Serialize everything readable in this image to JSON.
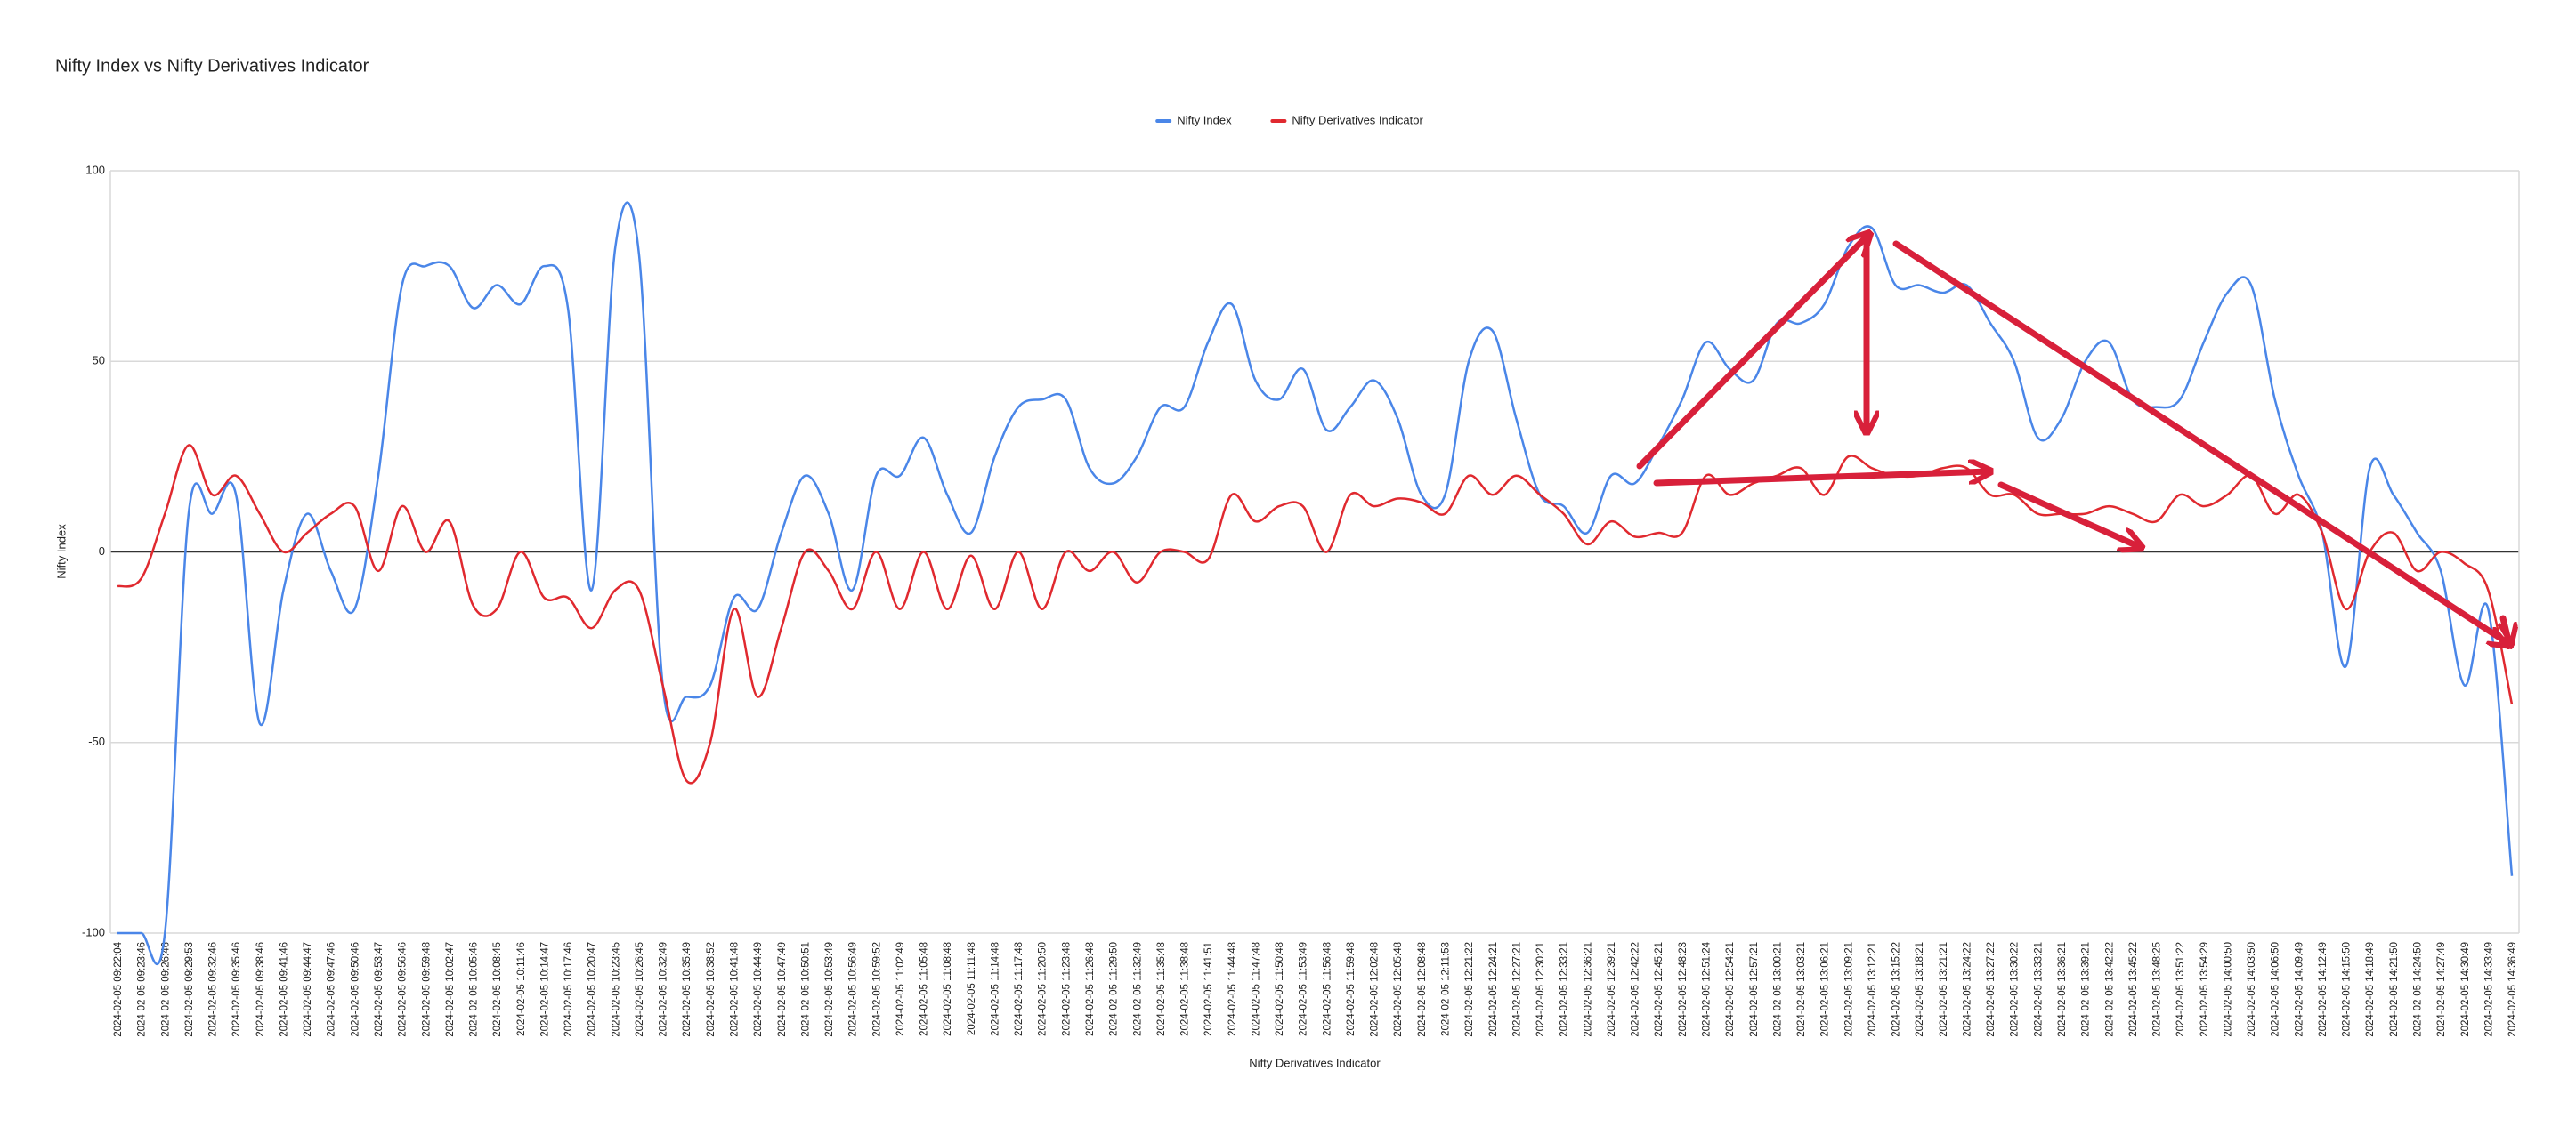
{
  "chart_data": {
    "type": "line",
    "title": "Nifty Index vs Nifty Derivatives Indicator",
    "y_axis_label": "Nifty Index",
    "x_axis_label": "Nifty Derivatives Indicator",
    "categories": [
      "2024-02-05 09:22:04",
      "2024-02-05 09:23:46",
      "2024-02-05 09:26:46",
      "2024-02-05 09:29:53",
      "2024-02-05 09:32:46",
      "2024-02-05 09:35:46",
      "2024-02-05 09:38:46",
      "2024-02-05 09:41:46",
      "2024-02-05 09:44:47",
      "2024-02-05 09:47:46",
      "2024-02-05 09:50:46",
      "2024-02-05 09:53:47",
      "2024-02-05 09:56:46",
      "2024-02-05 09:59:48",
      "2024-02-05 10:02:47",
      "2024-02-05 10:05:46",
      "2024-02-05 10:08:45",
      "2024-02-05 10:11:46",
      "2024-02-05 10:14:47",
      "2024-02-05 10:17:46",
      "2024-02-05 10:20:47",
      "2024-02-05 10:23:45",
      "2024-02-05 10:26:45",
      "2024-02-05 10:32:49",
      "2024-02-05 10:35:49",
      "2024-02-05 10:38:52",
      "2024-02-05 10:41:48",
      "2024-02-05 10:44:49",
      "2024-02-05 10:47:49",
      "2024-02-05 10:50:51",
      "2024-02-05 10:53:49",
      "2024-02-05 10:56:49",
      "2024-02-05 10:59:52",
      "2024-02-05 11:02:49",
      "2024-02-05 11:05:48",
      "2024-02-05 11:08:48",
      "2024-02-05 11:11:48",
      "2024-02-05 11:14:48",
      "2024-02-05 11:17:48",
      "2024-02-05 11:20:50",
      "2024-02-05 11:23:48",
      "2024-02-05 11:26:48",
      "2024-02-05 11:29:50",
      "2024-02-05 11:32:49",
      "2024-02-05 11:35:48",
      "2024-02-05 11:38:48",
      "2024-02-05 11:41:51",
      "2024-02-05 11:44:48",
      "2024-02-05 11:47:48",
      "2024-02-05 11:50:48",
      "2024-02-05 11:53:49",
      "2024-02-05 11:56:48",
      "2024-02-05 11:59:48",
      "2024-02-05 12:02:48",
      "2024-02-05 12:05:48",
      "2024-02-05 12:08:48",
      "2024-02-05 12:11:53",
      "2024-02-05 12:21:22",
      "2024-02-05 12:24:21",
      "2024-02-05 12:27:21",
      "2024-02-05 12:30:21",
      "2024-02-05 12:33:21",
      "2024-02-05 12:36:21",
      "2024-02-05 12:39:21",
      "2024-02-05 12:42:22",
      "2024-02-05 12:45:21",
      "2024-02-05 12:48:23",
      "2024-02-05 12:51:24",
      "2024-02-05 12:54:21",
      "2024-02-05 12:57:21",
      "2024-02-05 13:00:21",
      "2024-02-05 13:03:21",
      "2024-02-05 13:06:21",
      "2024-02-05 13:09:21",
      "2024-02-05 13:12:21",
      "2024-02-05 13:15:22",
      "2024-02-05 13:18:21",
      "2024-02-05 13:21:21",
      "2024-02-05 13:24:22",
      "2024-02-05 13:27:22",
      "2024-02-05 13:30:22",
      "2024-02-05 13:33:21",
      "2024-02-05 13:36:21",
      "2024-02-05 13:39:21",
      "2024-02-05 13:42:22",
      "2024-02-05 13:45:22",
      "2024-02-05 13:48:25",
      "2024-02-05 13:51:22",
      "2024-02-05 13:54:29",
      "2024-02-05 14:00:50",
      "2024-02-05 14:03:50",
      "2024-02-05 14:06:50",
      "2024-02-05 14:09:49",
      "2024-02-05 14:12:49",
      "2024-02-05 14:15:50",
      "2024-02-05 14:18:49",
      "2024-02-05 14:21:50",
      "2024-02-05 14:24:50",
      "2024-02-05 14:27:49",
      "2024-02-05 14:30:49",
      "2024-02-05 14:33:49",
      "2024-02-05 14:36:49"
    ],
    "series": [
      {
        "name": "Nifty Index",
        "color": "#4a86e8",
        "values": [
          -100,
          -100,
          -100,
          10,
          10,
          15,
          -45,
          -10,
          10,
          -5,
          -15,
          20,
          70,
          75,
          75,
          64,
          70,
          65,
          75,
          64,
          -10,
          80,
          78,
          -35,
          -38,
          -35,
          -12,
          -15,
          5,
          20,
          10,
          -10,
          20,
          20,
          30,
          15,
          5,
          25,
          38,
          40,
          40,
          22,
          18,
          25,
          38,
          38,
          55,
          65,
          45,
          40,
          48,
          32,
          38,
          45,
          35,
          15,
          15,
          50,
          58,
          35,
          15,
          12,
          5,
          20,
          18,
          28,
          40,
          55,
          48,
          45,
          60,
          60,
          65,
          80,
          85,
          70,
          70,
          68,
          70,
          60,
          50,
          30,
          35,
          50,
          55,
          40,
          38,
          40,
          55,
          68,
          70,
          40,
          20,
          5,
          -30,
          22,
          15,
          5,
          -5,
          -35,
          -15,
          -85
        ]
      },
      {
        "name": "Nifty Derivatives Indicator",
        "color": "#e0292f",
        "values": [
          -9,
          -7,
          10,
          28,
          15,
          20,
          10,
          0,
          5,
          10,
          12,
          -5,
          12,
          0,
          8,
          -14,
          -15,
          0,
          -12,
          -12,
          -20,
          -10,
          -10,
          -35,
          -60,
          -50,
          -15,
          -38,
          -20,
          0,
          -5,
          -15,
          0,
          -15,
          0,
          -15,
          -1,
          -15,
          0,
          -15,
          0,
          -5,
          0,
          -8,
          0,
          0,
          -2,
          15,
          8,
          12,
          12,
          0,
          15,
          12,
          14,
          13,
          10,
          20,
          15,
          20,
          15,
          10,
          2,
          8,
          4,
          5,
          5,
          20,
          15,
          18,
          20,
          22,
          15,
          25,
          22,
          20,
          20,
          22,
          22,
          15,
          15,
          10,
          10,
          10,
          12,
          10,
          8,
          15,
          12,
          15,
          20,
          10,
          15,
          5,
          -15,
          0,
          5,
          -5,
          0,
          -3,
          -10,
          -40
        ]
      }
    ],
    "ylim": [
      -100,
      100
    ],
    "yticks": [
      -100,
      -50,
      0,
      50,
      100
    ],
    "grid": true,
    "legend": "top"
  }
}
